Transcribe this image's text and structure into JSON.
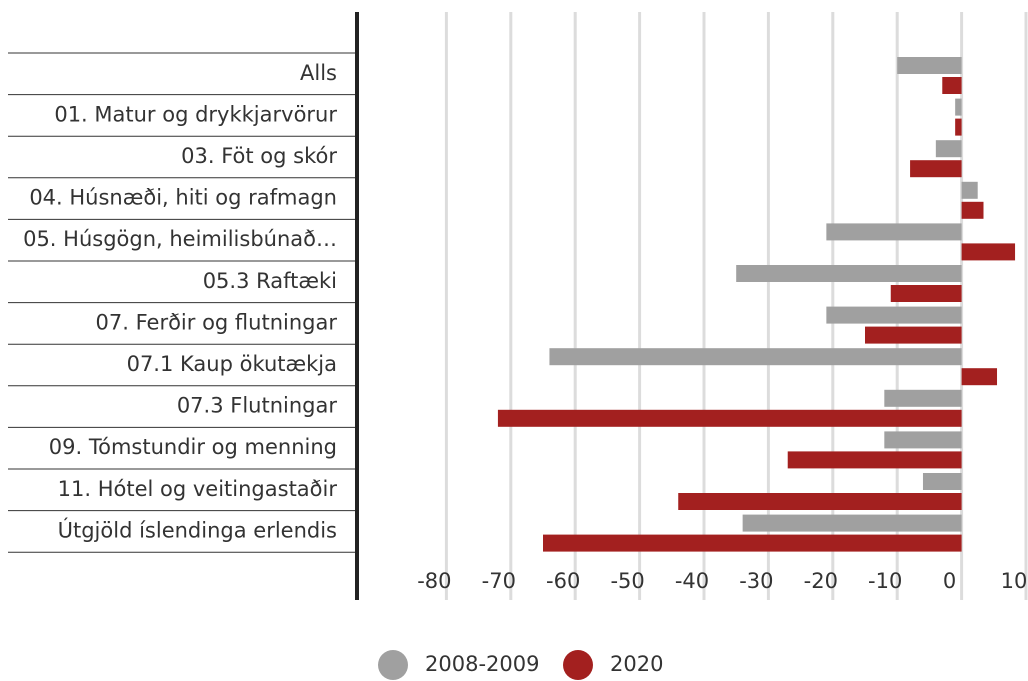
{
  "chart_data": {
    "type": "hbar",
    "categories": [
      "Alls",
      "01. Matur og drykkjarvörur",
      "03. Föt og skór",
      "04. Húsnæði, hiti og rafmagn",
      "05. Húsgögn, heimilisbúnað…",
      "05.3 Raftæki",
      "07. Ferðir og flutningar",
      "07.1 Kaup ökutækja",
      "07.3 Flutningar",
      "09. Tómstundir og menning",
      "11. Hótel og veitingastaðir",
      "Útgjöld íslendinga erlendis"
    ],
    "series": [
      {
        "name": "2008-2009",
        "color": "#a0a0a0",
        "values": [
          -10,
          -1,
          -4,
          2.5,
          -21,
          -35,
          -21,
          -64,
          -12,
          -12,
          -6,
          -34
        ]
      },
      {
        "name": "2020",
        "color": "#a3201f",
        "values": [
          -3,
          -1,
          -8,
          3.4,
          8.3,
          -11,
          -15,
          5.5,
          -72,
          -27,
          -44,
          -65
        ]
      }
    ],
    "xlim": [
      -90,
      10
    ],
    "xticks": [
      -80,
      -70,
      -60,
      -50,
      -40,
      -30,
      -20,
      -10,
      0,
      10
    ],
    "grid": true,
    "legend": "bottom"
  }
}
